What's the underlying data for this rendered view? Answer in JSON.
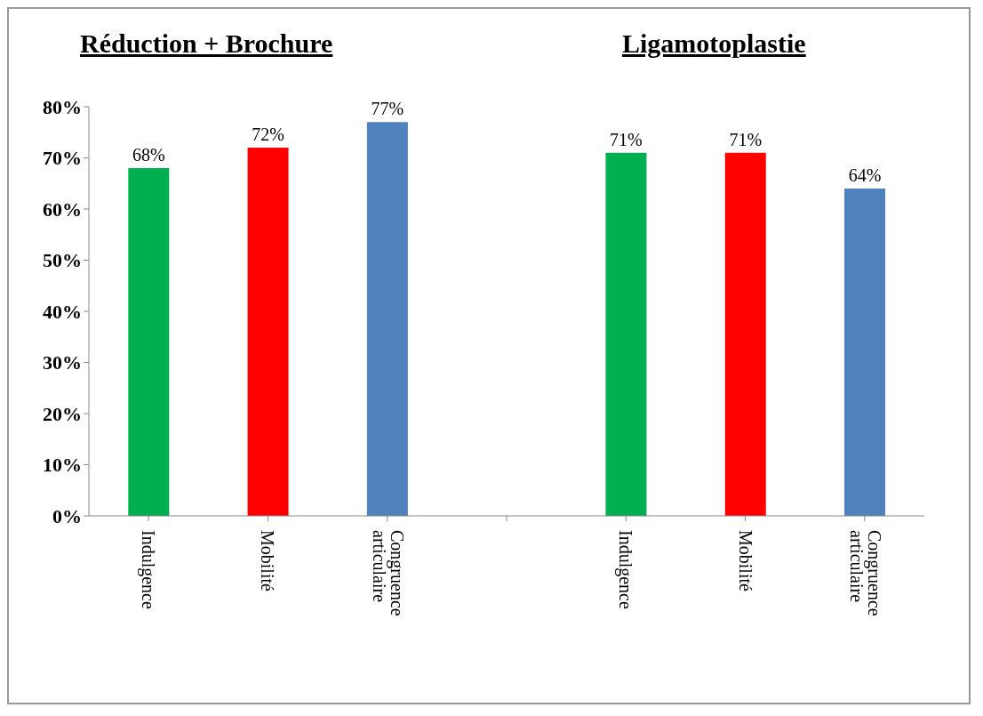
{
  "chart_data": {
    "type": "bar",
    "categories": [
      "Indulgence",
      "Mobilité",
      "Congruence articulaire",
      null,
      "Indulgence",
      "Mobilité",
      "Congruence articulaire"
    ],
    "values": [
      68,
      72,
      77,
      null,
      71,
      71,
      64
    ],
    "value_labels": [
      "68%",
      "72%",
      "77%",
      null,
      "71%",
      "71%",
      "64%"
    ],
    "colors": [
      "#00b050",
      "#ff0000",
      "#4f81bd",
      null,
      "#00b050",
      "#ff0000",
      "#4f81bd"
    ],
    "ylim": [
      0,
      80
    ],
    "yticks": [
      {
        "value": 0,
        "label": "0%"
      },
      {
        "value": 10,
        "label": "10%"
      },
      {
        "value": 20,
        "label": "20%"
      },
      {
        "value": 30,
        "label": "30%"
      },
      {
        "value": 40,
        "label": "40%"
      },
      {
        "value": 50,
        "label": "50%"
      },
      {
        "value": 60,
        "label": "60%"
      },
      {
        "value": 70,
        "label": "70%"
      },
      {
        "value": 80,
        "label": "80%"
      }
    ],
    "annotations": [
      "Réduction + Brochure",
      "Ligamotoplastie"
    ],
    "grid": false,
    "legend": false
  }
}
